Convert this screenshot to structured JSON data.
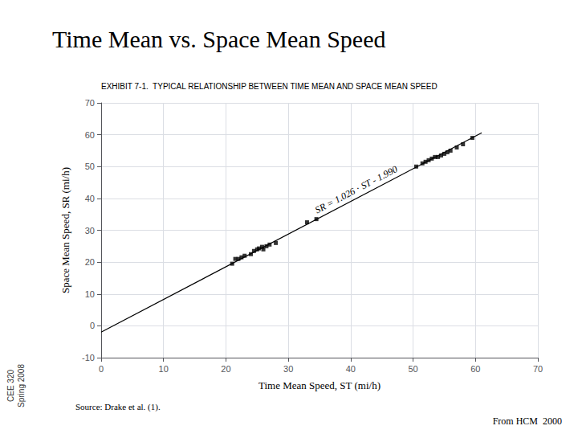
{
  "chart_data": {
    "type": "scatter",
    "title": "Time Mean vs. Space Mean Speed",
    "subtitle": "EXHIBIT 7-1.  TYPICAL RELATIONSHIP BETWEEN TIME MEAN AND SPACE MEAN SPEED",
    "xlabel": "Time Mean Speed, ST (mi/h)",
    "ylabel": "Space Mean Speed, SR (mi/h)",
    "annotations": [
      "SR = 1.026 ⋅ ST - 1.990",
      "Source: Drake et al. (1).",
      "From HCM  2000",
      "CEE 320\nSpring 2008"
    ],
    "series": [
      {
        "type": "line",
        "color": "#000000",
        "line_style": "solid",
        "x": [
          0,
          61
        ],
        "values": [
          -1.99,
          60.596
        ]
      },
      {
        "type": "scatter",
        "color": "#000000",
        "marker": "square",
        "x": [
          21.0,
          21.5,
          22.0,
          22.5,
          23.0,
          24.0,
          24.5,
          25.0,
          25.3,
          25.8,
          26.0,
          26.5,
          27.0,
          28.0,
          33.0,
          34.5,
          50.5,
          51.5,
          52.0,
          52.5,
          53.0,
          53.5,
          54.0,
          54.5,
          55.0,
          55.5,
          56.0,
          57.0,
          58.0,
          59.5
        ],
        "values": [
          19.5,
          21.0,
          21.0,
          21.5,
          22.0,
          22.5,
          23.5,
          24.0,
          24.3,
          24.8,
          24.0,
          25.0,
          25.5,
          26.0,
          32.5,
          33.5,
          50.0,
          51.0,
          51.5,
          52.0,
          52.5,
          53.0,
          53.0,
          53.5,
          54.0,
          54.5,
          55.0,
          56.0,
          57.0,
          59.0
        ]
      }
    ],
    "xlim": [
      0,
      70
    ],
    "xticks": [
      0,
      10,
      20,
      30,
      40,
      50,
      60,
      70
    ],
    "ylim": [
      -10,
      70
    ],
    "yticks": [
      -10,
      0,
      10,
      20,
      30,
      40,
      50,
      60,
      70
    ],
    "grid": true
  }
}
